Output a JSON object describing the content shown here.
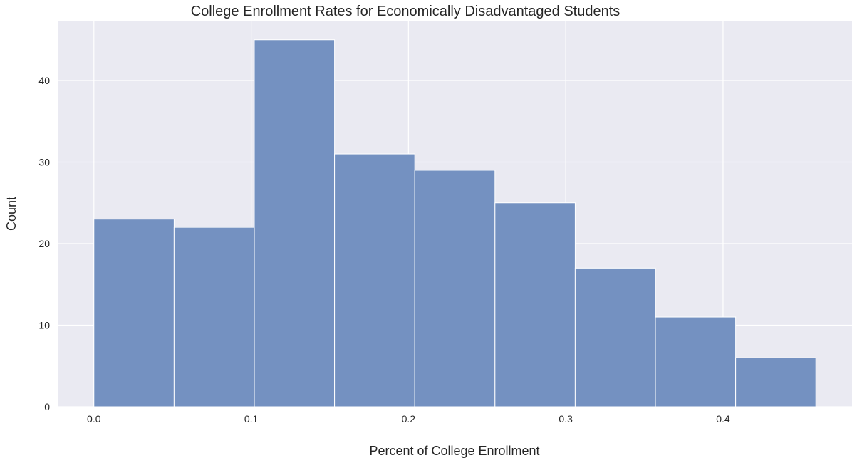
{
  "chart_data": {
    "type": "bar",
    "title": "College Enrollment Rates for Economically Disadvantaged Students",
    "xlabel": "Percent of College Enrollment",
    "ylabel": "Count",
    "bin_edges": [
      0.0,
      0.051,
      0.102,
      0.153,
      0.204,
      0.255,
      0.306,
      0.357,
      0.408,
      0.459
    ],
    "values": [
      23,
      22,
      45,
      31,
      29,
      25,
      17,
      11,
      6
    ],
    "xlim": [
      -0.023,
      0.482
    ],
    "ylim": [
      0,
      47.25
    ],
    "x_ticks": [
      0.0,
      0.1,
      0.2,
      0.3,
      0.4
    ],
    "x_tick_labels": [
      "0.0",
      "0.1",
      "0.2",
      "0.3",
      "0.4"
    ],
    "y_ticks": [
      0,
      10,
      20,
      30,
      40
    ],
    "y_tick_labels": [
      "0",
      "10",
      "20",
      "30",
      "40"
    ],
    "grid": true,
    "colors": {
      "background": "#EAEAF2",
      "grid": "#FFFFFF",
      "bar_fill": "#7491C1",
      "bar_edge": "#FFFFFF",
      "text": "#262626"
    }
  }
}
